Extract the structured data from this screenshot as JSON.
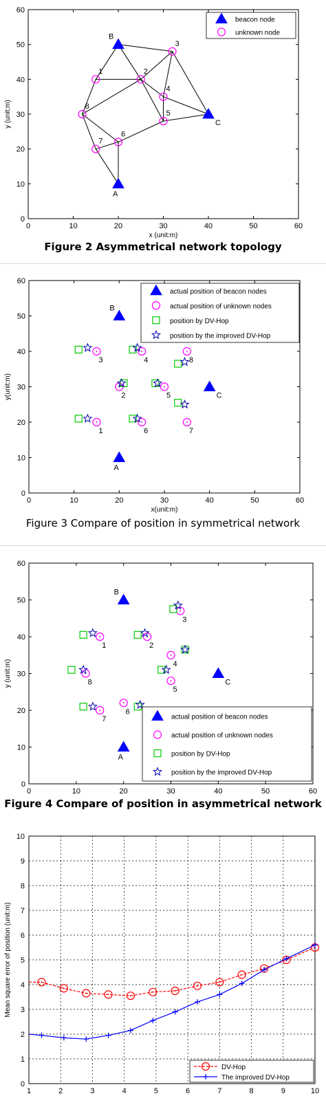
{
  "charts": [
    {
      "xlabel": "x (unit:m)",
      "ylabel": "y (unit:m)",
      "xlim": [
        0,
        60
      ],
      "ylim": [
        0,
        60
      ],
      "xticks": [
        0,
        10,
        20,
        30,
        40,
        50,
        60
      ],
      "yticks": [
        0,
        10,
        20,
        30,
        40,
        50,
        60
      ],
      "legend_position": "top-right",
      "caption": "Figure 2 Asymmetrical network topology"
    },
    {
      "xlabel": "x(unit:m)",
      "ylabel": "y(unit:m)",
      "xlim": [
        0,
        60
      ],
      "ylim": [
        0,
        60
      ],
      "xticks": [
        0,
        10,
        20,
        30,
        40,
        50,
        60
      ],
      "yticks": [
        0,
        10,
        20,
        30,
        40,
        50,
        60
      ],
      "legend_position": "top-right",
      "caption": "Figure 3  Compare of position in symmetrical network"
    },
    {
      "xlabel": "x (unit:m)",
      "ylabel": "y (unit:m)",
      "xlim": [
        0,
        60
      ],
      "ylim": [
        0,
        60
      ],
      "xticks": [
        0,
        10,
        20,
        30,
        40,
        50,
        60
      ],
      "yticks": [
        0,
        10,
        20,
        30,
        40,
        50,
        60
      ],
      "legend_position": "bottom-right",
      "caption": "Figure 4 Compare of position in asymmetrical network"
    },
    {
      "xlabel": "",
      "ylabel": "Mean square error of position (unit:m)",
      "xlim": [
        1,
        10
      ],
      "ylim": [
        0,
        10
      ],
      "xticks": [
        1,
        2,
        3,
        4,
        5,
        6,
        7,
        8,
        9,
        10
      ],
      "yticks": [
        0,
        1,
        2,
        3,
        4,
        5,
        6,
        7,
        8,
        9,
        10
      ],
      "legend_position": "bottom-right",
      "grid": true
    }
  ],
  "chart_data": [
    {
      "type": "scatter",
      "series": [
        {
          "name": "beacon node",
          "marker": "triangle",
          "color": "#0000ff",
          "points": [
            {
              "x": 20,
              "y": 10,
              "label": "A"
            },
            {
              "x": 20,
              "y": 50,
              "label": "B"
            },
            {
              "x": 40,
              "y": 30,
              "label": "C"
            }
          ]
        },
        {
          "name": "unknown node",
          "marker": "circle",
          "color": "#ff00ff",
          "points": [
            {
              "x": 15,
              "y": 40,
              "label": "1"
            },
            {
              "x": 25,
              "y": 40,
              "label": "2"
            },
            {
              "x": 32,
              "y": 48,
              "label": "3"
            },
            {
              "x": 30,
              "y": 35,
              "label": "4"
            },
            {
              "x": 30,
              "y": 28,
              "label": "5"
            },
            {
              "x": 20,
              "y": 22,
              "label": "6"
            },
            {
              "x": 15,
              "y": 20,
              "label": "7"
            },
            {
              "x": 12,
              "y": 30,
              "label": "8"
            }
          ]
        }
      ],
      "edges": [
        [
          "B",
          "3"
        ],
        [
          "B",
          "1"
        ],
        [
          "B",
          "2"
        ],
        [
          "1",
          "2"
        ],
        [
          "1",
          "8"
        ],
        [
          "2",
          "3"
        ],
        [
          "2",
          "4"
        ],
        [
          "2",
          "5"
        ],
        [
          "2",
          "8"
        ],
        [
          "3",
          "4"
        ],
        [
          "3",
          "C"
        ],
        [
          "4",
          "5"
        ],
        [
          "4",
          "C"
        ],
        [
          "5",
          "C"
        ],
        [
          "5",
          "6"
        ],
        [
          "6",
          "8"
        ],
        [
          "6",
          "7"
        ],
        [
          "6",
          "A"
        ],
        [
          "7",
          "8"
        ],
        [
          "7",
          "A"
        ]
      ]
    },
    {
      "type": "scatter",
      "series": [
        {
          "name": "actual position of beacon nodes",
          "marker": "triangle",
          "color": "#0000ff",
          "points": [
            {
              "x": 20,
              "y": 10,
              "label": "A"
            },
            {
              "x": 20,
              "y": 50,
              "label": "B"
            },
            {
              "x": 40,
              "y": 30,
              "label": "C"
            }
          ]
        },
        {
          "name": "actual position of unknown nodes",
          "marker": "circle",
          "color": "#ff00ff",
          "points": [
            {
              "x": 15,
              "y": 20,
              "label": "1"
            },
            {
              "x": 20,
              "y": 30,
              "label": "2"
            },
            {
              "x": 15,
              "y": 40,
              "label": "3"
            },
            {
              "x": 25,
              "y": 40,
              "label": "4"
            },
            {
              "x": 30,
              "y": 30,
              "label": "5"
            },
            {
              "x": 25,
              "y": 20,
              "label": "6"
            },
            {
              "x": 35,
              "y": 20,
              "label": "7"
            },
            {
              "x": 35,
              "y": 40,
              "label": "8"
            }
          ]
        },
        {
          "name": "position by DV-Hop",
          "marker": "square",
          "color": "#00cc00",
          "points": [
            {
              "x": 11,
              "y": 21
            },
            {
              "x": 21,
              "y": 31
            },
            {
              "x": 11,
              "y": 40.5
            },
            {
              "x": 23,
              "y": 40.5
            },
            {
              "x": 28,
              "y": 31
            },
            {
              "x": 23,
              "y": 21
            },
            {
              "x": 33,
              "y": 25.5
            },
            {
              "x": 33,
              "y": 36.5
            }
          ]
        },
        {
          "name": "position by the improved DV-Hop",
          "marker": "star",
          "color": "#0000aa",
          "points": [
            {
              "x": 13,
              "y": 21
            },
            {
              "x": 20.5,
              "y": 31
            },
            {
              "x": 13,
              "y": 41
            },
            {
              "x": 24,
              "y": 41
            },
            {
              "x": 28.5,
              "y": 31
            },
            {
              "x": 24,
              "y": 21
            },
            {
              "x": 34.5,
              "y": 25
            },
            {
              "x": 34.5,
              "y": 37
            }
          ]
        }
      ]
    },
    {
      "type": "scatter",
      "series": [
        {
          "name": "actual position of beacon nodes",
          "marker": "triangle",
          "color": "#0000ff",
          "points": [
            {
              "x": 20,
              "y": 10,
              "label": "A"
            },
            {
              "x": 20,
              "y": 50,
              "label": "B"
            },
            {
              "x": 40,
              "y": 30,
              "label": "C"
            }
          ]
        },
        {
          "name": "actual position of unknown nodes",
          "marker": "circle",
          "color": "#ff00ff",
          "points": [
            {
              "x": 15,
              "y": 40,
              "label": "1"
            },
            {
              "x": 25,
              "y": 40,
              "label": "2"
            },
            {
              "x": 32,
              "y": 47,
              "label": "3"
            },
            {
              "x": 30,
              "y": 35,
              "label": "4"
            },
            {
              "x": 30,
              "y": 28,
              "label": "5"
            },
            {
              "x": 20,
              "y": 22,
              "label": "6"
            },
            {
              "x": 15,
              "y": 20,
              "label": "7"
            },
            {
              "x": 12,
              "y": 30,
              "label": "8"
            }
          ]
        },
        {
          "name": "position by DV-Hop",
          "marker": "square",
          "color": "#00cc00",
          "points": [
            {
              "x": 11.5,
              "y": 40.5
            },
            {
              "x": 23,
              "y": 40.5
            },
            {
              "x": 30.5,
              "y": 47.5
            },
            {
              "x": 33,
              "y": 36.5
            },
            {
              "x": 28,
              "y": 31
            },
            {
              "x": 23,
              "y": 21
            },
            {
              "x": 11.5,
              "y": 21
            },
            {
              "x": 9,
              "y": 31
            }
          ]
        },
        {
          "name": "position by the improved DV-Hop",
          "marker": "star",
          "color": "#0000aa",
          "points": [
            {
              "x": 13.5,
              "y": 41
            },
            {
              "x": 24.5,
              "y": 41
            },
            {
              "x": 31.5,
              "y": 48.5
            },
            {
              "x": 33,
              "y": 36.5
            },
            {
              "x": 29,
              "y": 31
            },
            {
              "x": 23.5,
              "y": 21.5
            },
            {
              "x": 13.5,
              "y": 21
            },
            {
              "x": 11.5,
              "y": 31
            }
          ]
        }
      ]
    },
    {
      "type": "line",
      "series": [
        {
          "name": "DV-Hop",
          "color": "#ff0000",
          "dash": true,
          "marker": "circle",
          "x": [
            1,
            1.4,
            2.1,
            2.8,
            3.5,
            4.2,
            4.9,
            5.6,
            6.3,
            7.0,
            7.7,
            8.4,
            9.1,
            10
          ],
          "y": [
            4.1,
            4.1,
            3.85,
            3.65,
            3.6,
            3.55,
            3.7,
            3.75,
            3.95,
            4.1,
            4.4,
            4.65,
            5.0,
            5.5
          ]
        },
        {
          "name": "The improved DV-Hop",
          "color": "#0000ff",
          "dash": false,
          "marker": "plus",
          "x": [
            1,
            1.4,
            2.1,
            2.8,
            3.5,
            4.2,
            4.9,
            5.6,
            6.3,
            7.0,
            7.7,
            8.4,
            9.1,
            10
          ],
          "y": [
            2.0,
            1.95,
            1.85,
            1.8,
            1.95,
            2.15,
            2.55,
            2.9,
            3.3,
            3.6,
            4.05,
            4.6,
            5.05,
            5.6
          ]
        }
      ]
    }
  ]
}
